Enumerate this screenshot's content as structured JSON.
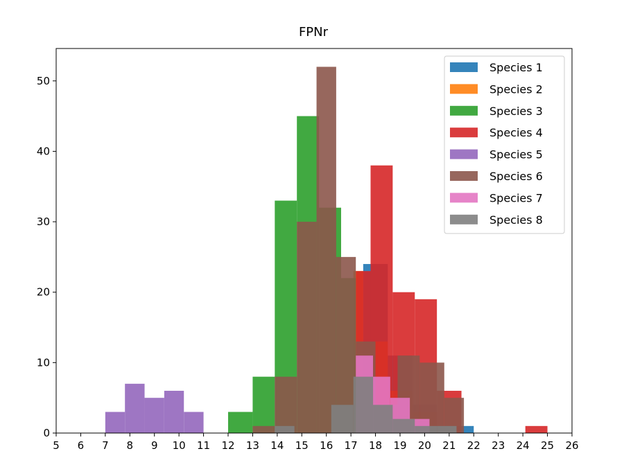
{
  "chart_data": {
    "type": "histogram",
    "title": "FPNr",
    "xlabel": "",
    "ylabel": "",
    "xlim": [
      5,
      26
    ],
    "ylim": [
      0,
      54.6
    ],
    "xticks": [
      5,
      6,
      7,
      8,
      9,
      10,
      11,
      12,
      13,
      14,
      15,
      16,
      17,
      18,
      19,
      20,
      21,
      22,
      23,
      24,
      25,
      26
    ],
    "yticks": [
      0,
      10,
      20,
      30,
      40,
      50
    ],
    "legend_position": "upper right",
    "grid": false,
    "series": [
      {
        "name": "Species 1",
        "color": "#1f77b4",
        "bins": [
          [
            17.5,
            18.5,
            24
          ],
          [
            18.5,
            19.5,
            11
          ],
          [
            19.5,
            20.5,
            4
          ],
          [
            20.5,
            21.2,
            1
          ],
          [
            21.2,
            22,
            1
          ]
        ]
      },
      {
        "name": "Species 2",
        "color": "#ff7f0e",
        "bins": [
          [
            17.1,
            17.5,
            23
          ],
          [
            17.5,
            18.5,
            13
          ],
          [
            18.5,
            19.5,
            6
          ],
          [
            19.5,
            20.5,
            3
          ]
        ]
      },
      {
        "name": "Species 3",
        "color": "#2ca02c",
        "bins": [
          [
            12,
            13,
            3
          ],
          [
            13,
            13.9,
            8
          ],
          [
            13.9,
            14.8,
            33
          ],
          [
            14.8,
            15.7,
            45
          ],
          [
            15.7,
            16.6,
            32
          ],
          [
            16.6,
            17.2,
            22
          ]
        ]
      },
      {
        "name": "Species 4",
        "color": "#d62728",
        "bins": [
          [
            17.2,
            17.8,
            23
          ],
          [
            17.8,
            18.7,
            38
          ],
          [
            18.7,
            19.6,
            20
          ],
          [
            19.6,
            20.5,
            19
          ],
          [
            20.5,
            21.5,
            6
          ],
          [
            24.1,
            25,
            1
          ]
        ]
      },
      {
        "name": "Species 5",
        "color": "#9467bd",
        "bins": [
          [
            7,
            7.8,
            3
          ],
          [
            7.8,
            8.6,
            7
          ],
          [
            8.6,
            9.4,
            5
          ],
          [
            9.4,
            10.2,
            6
          ],
          [
            10.2,
            11,
            3
          ]
        ]
      },
      {
        "name": "Species 6",
        "color": "#8c564b",
        "bins": [
          [
            13,
            13.9,
            1
          ],
          [
            13.9,
            14.8,
            8
          ],
          [
            14.8,
            15.6,
            30
          ],
          [
            15.6,
            16.4,
            52
          ],
          [
            16.4,
            17.2,
            25
          ],
          [
            17.2,
            18,
            13
          ],
          [
            18,
            18.9,
            4
          ],
          [
            18.9,
            19.8,
            11
          ],
          [
            19.8,
            20.8,
            10
          ],
          [
            20.8,
            21.6,
            5
          ]
        ]
      },
      {
        "name": "Species 7",
        "color": "#e377c2",
        "bins": [
          [
            17.2,
            17.9,
            11
          ],
          [
            17.9,
            18.6,
            8
          ],
          [
            18.6,
            19.4,
            5
          ],
          [
            19.4,
            20.2,
            2
          ]
        ]
      },
      {
        "name": "Species 8",
        "color": "#7f7f7f",
        "bins": [
          [
            13.9,
            14.7,
            1
          ],
          [
            16.2,
            17.1,
            4
          ],
          [
            17.1,
            17.9,
            8
          ],
          [
            17.9,
            18.7,
            4
          ],
          [
            18.7,
            19.6,
            2
          ],
          [
            19.6,
            20.5,
            1
          ],
          [
            20.5,
            21.3,
            1
          ]
        ]
      }
    ]
  }
}
